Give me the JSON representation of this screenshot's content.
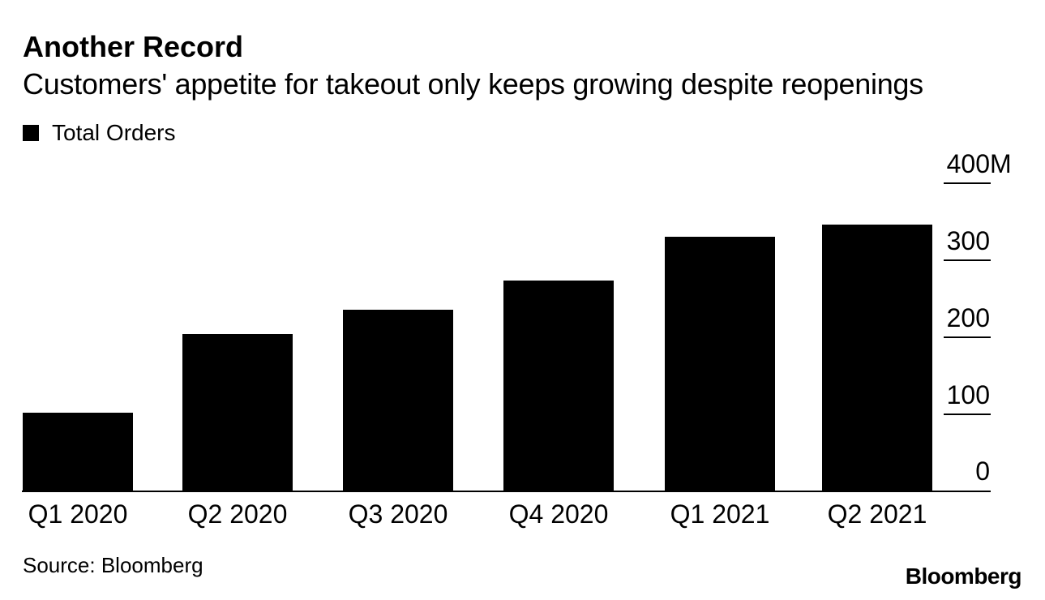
{
  "header": {
    "title": "Another Record",
    "subtitle": "Customers' appetite for takeout only keeps growing despite reopenings"
  },
  "legend": {
    "label": "Total Orders",
    "swatch_color": "#000000"
  },
  "chart_data": {
    "type": "bar",
    "title": "Another Record",
    "subtitle": "Customers' appetite for takeout only keeps growing despite reopenings",
    "series_name": "Total Orders",
    "categories": [
      "Q1 2020",
      "Q2 2020",
      "Q3 2020",
      "Q4 2020",
      "Q1 2021",
      "Q2 2021"
    ],
    "values": [
      102,
      204,
      236,
      274,
      330,
      346
    ],
    "unit": "M",
    "xlabel": "",
    "ylabel": "",
    "ylim": [
      0,
      400
    ],
    "y_axis": {
      "side": "right",
      "ticks": [
        {
          "value": 0,
          "label": "0"
        },
        {
          "value": 100,
          "label": "100"
        },
        {
          "value": 200,
          "label": "200"
        },
        {
          "value": 300,
          "label": "300"
        },
        {
          "value": 400,
          "label": "400",
          "suffix": "M"
        }
      ]
    },
    "grid": false,
    "bar_color": "#000000",
    "legend_position": "top-left"
  },
  "footer": {
    "source": "Source: Bloomberg",
    "logo": "Bloomberg"
  }
}
